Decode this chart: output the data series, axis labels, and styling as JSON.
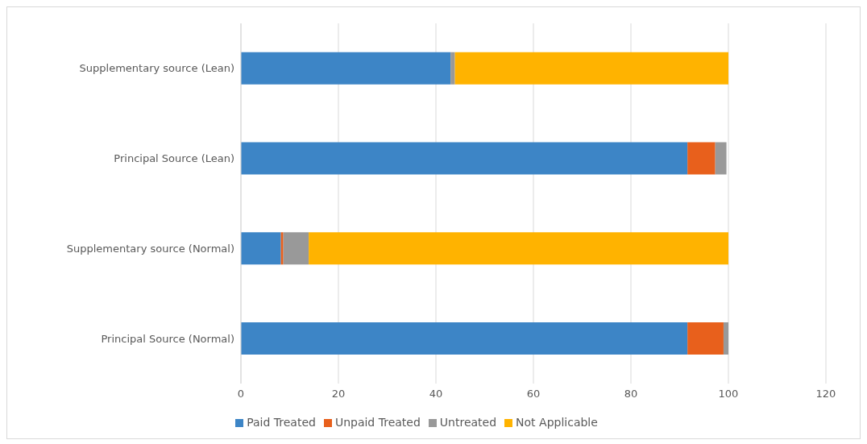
{
  "chart_data": {
    "type": "bar",
    "orientation": "horizontal",
    "stacked": true,
    "categories": [
      "Supplementary source (Lean)",
      "Principal Source (Lean)",
      "Supplementary source (Normal)",
      "Principal Source (Normal)"
    ],
    "series": [
      {
        "name": "Paid Treated",
        "color": "#3d85c6",
        "values": [
          43,
          91.6,
          8.2,
          91.6
        ]
      },
      {
        "name": "Unpaid Treated",
        "color": "#e8601c",
        "values": [
          0,
          5.7,
          0.5,
          7.4
        ]
      },
      {
        "name": "Untreated",
        "color": "#999999",
        "values": [
          0.9,
          2.3,
          5.2,
          1.0
        ]
      },
      {
        "name": "Not Applicable",
        "color": "#ffb300",
        "values": [
          56.1,
          0,
          86.1,
          0
        ]
      }
    ],
    "xlim": [
      0,
      120
    ],
    "xticks": [
      0,
      20,
      40,
      60,
      80,
      100,
      120
    ],
    "grid": "x",
    "legend": "bottom"
  }
}
